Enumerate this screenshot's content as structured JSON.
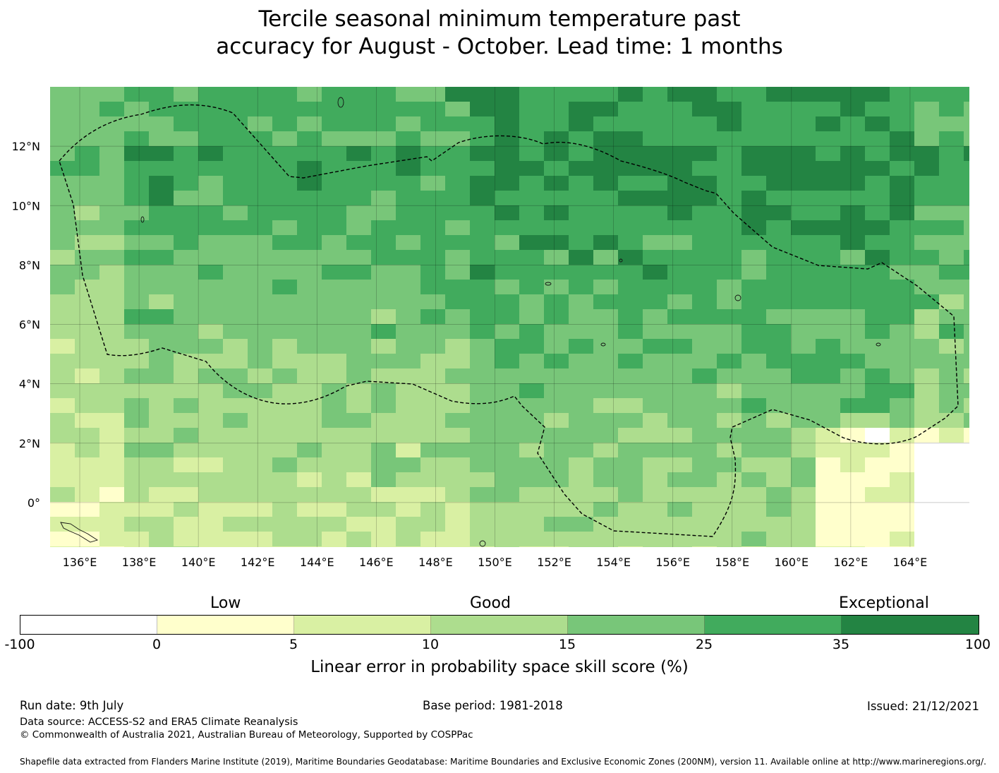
{
  "title_line1": "Tercile seasonal minimum temperature past",
  "title_line2": "accuracy for August - October. Lead time: 1 months",
  "map": {
    "lon_range": [
      135,
      166
    ],
    "lat_range": [
      -1.5,
      14
    ],
    "lon_ticks": [
      "136°E",
      "138°E",
      "140°E",
      "142°E",
      "144°E",
      "146°E",
      "148°E",
      "150°E",
      "152°E",
      "154°E",
      "156°E",
      "158°E",
      "160°E",
      "162°E",
      "164°E"
    ],
    "lat_ticks": [
      "12°N",
      "10°N",
      "8°N",
      "6°N",
      "4°N",
      "2°N",
      "0°"
    ],
    "boundary": "dashed",
    "gridlines": true
  },
  "colorbar": {
    "categories": [
      {
        "label": "Low",
        "position": "over 0-5"
      },
      {
        "label": "Good",
        "position": "over 10-15"
      },
      {
        "label": "Exceptional",
        "position": "over 35-100"
      }
    ],
    "ticks": [
      "-100",
      "0",
      "5",
      "10",
      "15",
      "25",
      "35",
      "100"
    ],
    "colors": [
      "#ffffff",
      "#ffffcc",
      "#d9f0a3",
      "#addd8e",
      "#78c679",
      "#41ab5d",
      "#238443"
    ],
    "label": "Linear error in probability space skill score (%)"
  },
  "footer": {
    "run_date": "Run date: 9th July",
    "base_period": "Base period: 1981-2018",
    "issued": "Issued: 21/12/2021",
    "data_source": "Data source: ACCESS-S2 and ERA5 Climate Reanalysis",
    "copyright": "© Commonwealth of Australia 2021, Australian Bureau of Meteorology, Supported by COSPPac",
    "shapefile": "Shapefile data extracted from Flanders Marine Institute (2019), Maritime Boundaries Geodatabase: Maritime Boundaries and Exclusive Economic Zones (200NM), version 11. Available online at http://www.marineregions.org/."
  }
}
